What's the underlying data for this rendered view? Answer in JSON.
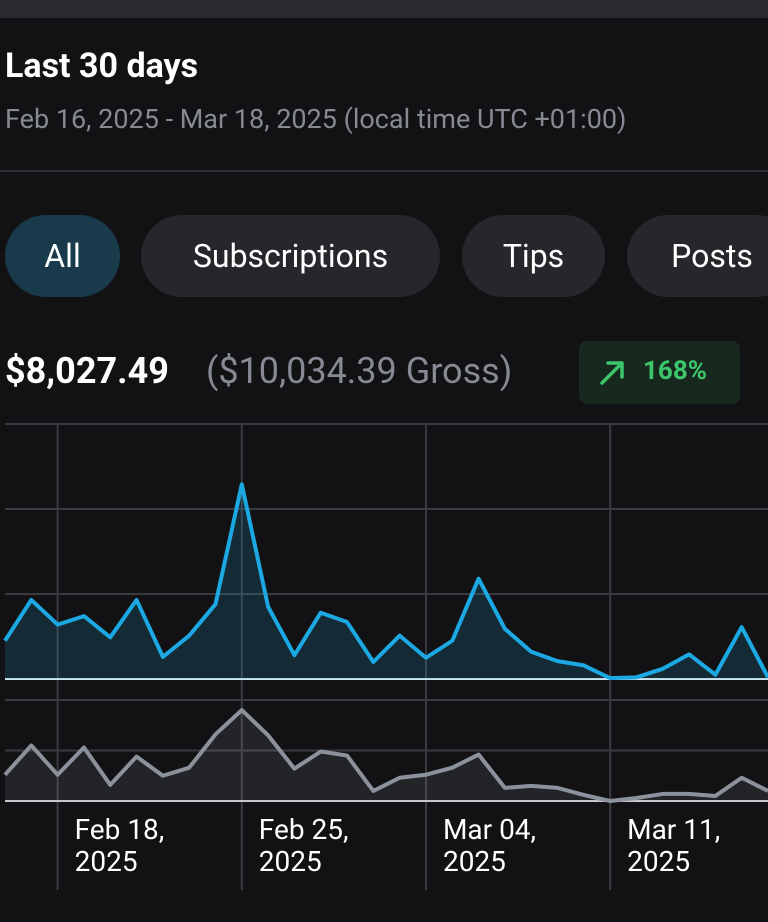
{
  "header": {
    "title": "Last 30 days",
    "subtitle": "Feb 16, 2025 - Mar 18, 2025 (local time UTC +01:00)"
  },
  "tabs": [
    {
      "label": "All",
      "active": true
    },
    {
      "label": "Subscriptions",
      "active": false
    },
    {
      "label": "Tips",
      "active": false
    },
    {
      "label": "Posts",
      "active": false
    }
  ],
  "summary": {
    "net": "$8,027.49",
    "gross": "($10,034.39 Gross)",
    "change": "168%"
  },
  "chart_data": [
    {
      "type": "line",
      "categories": [
        null,
        null,
        null,
        null,
        null,
        null,
        null,
        null,
        null,
        null,
        null,
        null,
        null,
        null,
        null,
        null,
        null,
        null,
        null,
        null,
        null,
        null,
        null,
        null,
        null,
        null,
        null,
        null,
        null,
        null
      ],
      "series": [
        {
          "color": "#1ca8e2",
          "values": [
            0.45,
            0.93,
            0.64,
            0.74,
            0.49,
            0.93,
            0.26,
            0.51,
            0.88,
            2.29,
            0.85,
            0.28,
            0.78,
            0.67,
            0.2,
            0.51,
            0.25,
            0.45,
            1.18,
            0.59,
            0.32,
            0.21,
            0.16,
            0.01,
            0.02,
            0.12,
            0.29,
            0.05,
            0.61,
            0.02
          ]
        }
      ],
      "ylim": [
        0,
        3
      ],
      "yticks": [
        0,
        1,
        2,
        3
      ],
      "grid": true
    },
    {
      "type": "line",
      "categories": [
        null,
        null,
        "Feb 18,\n2025",
        null,
        null,
        null,
        null,
        null,
        null,
        "Feb 25,\n2025",
        null,
        null,
        null,
        null,
        null,
        null,
        "Mar 04,\n2025",
        null,
        null,
        null,
        null,
        null,
        null,
        "Mar 11,\n2025",
        null,
        null,
        null,
        null,
        null,
        null
      ],
      "series": [
        {
          "color": "#8b929b",
          "values": [
            0.52,
            1.1,
            0.52,
            1.06,
            0.32,
            0.88,
            0.5,
            0.66,
            1.32,
            1.8,
            1.3,
            0.64,
            0.98,
            0.9,
            0.2,
            0.46,
            0.52,
            0.66,
            0.92,
            0.26,
            0.3,
            0.26,
            0.12,
            0,
            0.06,
            0.14,
            0.14,
            0.1,
            0.46,
            0.2
          ]
        }
      ],
      "ylim": [
        0,
        2
      ],
      "yticks": [
        0,
        1,
        2
      ],
      "grid": true
    }
  ]
}
